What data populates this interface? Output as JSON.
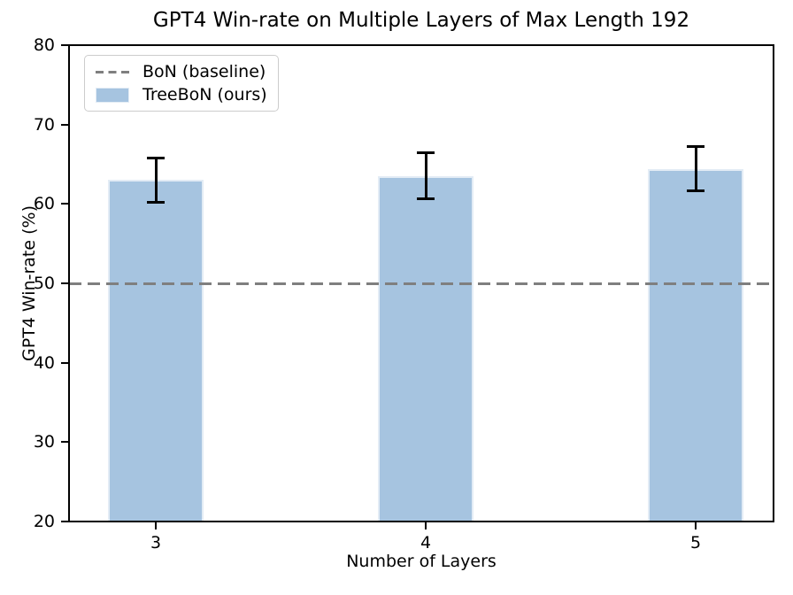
{
  "chart": {
    "title": "GPT4 Win-rate on Multiple Layers of Max Length 192",
    "xlabel": "Number of Layers",
    "ylabel": "GPT4 Win-rate (%)"
  },
  "chart_data": {
    "type": "bar",
    "title": "GPT4 Win-rate on Multiple Layers of Max Length 192",
    "xlabel": "Number of Layers",
    "ylabel": "GPT4 Win-rate (%)",
    "categories": [
      "3",
      "4",
      "5"
    ],
    "series": [
      {
        "name": "TreeBoN (ours)",
        "values": [
          63.0,
          63.5,
          64.4
        ],
        "errors": [
          2.8,
          2.9,
          2.8
        ]
      }
    ],
    "baseline": {
      "name": "BoN (baseline)",
      "value": 50,
      "style": "dashed"
    },
    "ylim": [
      20,
      80
    ],
    "yticks": [
      20,
      30,
      40,
      50,
      60,
      70,
      80
    ],
    "grid": false,
    "legend": {
      "position": "upper left",
      "entries": [
        "BoN (baseline)",
        "TreeBoN (ours)"
      ]
    },
    "colors": {
      "bar": "#a6c4e0",
      "bar_edge": "#e3ecf5",
      "baseline": "#7f7f7f",
      "error": "#000000",
      "text": "#000000"
    }
  }
}
